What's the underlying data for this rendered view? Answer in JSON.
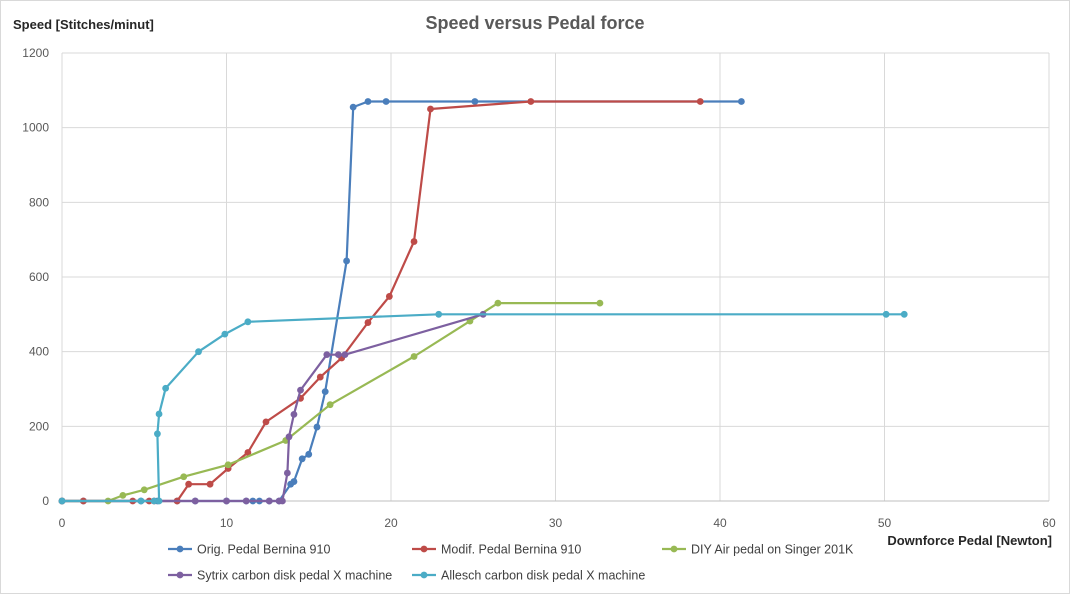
{
  "chart_data": {
    "type": "line",
    "title": "Speed versus  Pedal force",
    "xlabel": "Downforce Pedal [Newton]",
    "ylabel": "Speed [Stitches/minut]",
    "xlim": [
      0,
      60
    ],
    "ylim": [
      0,
      1200
    ],
    "xticks": [
      0,
      10,
      20,
      30,
      40,
      50,
      60
    ],
    "yticks": [
      0,
      200,
      400,
      600,
      800,
      1000,
      1200
    ],
    "grid": true,
    "legend_position": "bottom",
    "series": [
      {
        "name": "Orig. Pedal Bernina 910",
        "color": "#4a7ebb",
        "points": [
          [
            0,
            0
          ],
          [
            1.3,
            0
          ],
          [
            4.8,
            0
          ],
          [
            5.8,
            0
          ],
          [
            7,
            0
          ],
          [
            8.1,
            0
          ],
          [
            10,
            0
          ],
          [
            11.2,
            0
          ],
          [
            11.6,
            0
          ],
          [
            12,
            0
          ],
          [
            12.6,
            0
          ],
          [
            13.2,
            0
          ],
          [
            13.9,
            45
          ],
          [
            14.1,
            52
          ],
          [
            14.6,
            113
          ],
          [
            15,
            125
          ],
          [
            15.5,
            198
          ],
          [
            16,
            293
          ],
          [
            17.3,
            643
          ],
          [
            17.7,
            1055
          ],
          [
            18.6,
            1070
          ],
          [
            19.7,
            1070
          ],
          [
            25.1,
            1070
          ],
          [
            41.3,
            1070
          ]
        ]
      },
      {
        "name": "Modif. Pedal Bernina 910",
        "color": "#be4b48",
        "points": [
          [
            0,
            0
          ],
          [
            1.3,
            0
          ],
          [
            4.3,
            0
          ],
          [
            5.3,
            0
          ],
          [
            5.6,
            0
          ],
          [
            7,
            0
          ],
          [
            7.7,
            45
          ],
          [
            9,
            45
          ],
          [
            10.1,
            87
          ],
          [
            11.3,
            130
          ],
          [
            12.4,
            212
          ],
          [
            14.5,
            275
          ],
          [
            15.7,
            332
          ],
          [
            17,
            383
          ],
          [
            18.6,
            478
          ],
          [
            19.9,
            548
          ],
          [
            21.4,
            695
          ],
          [
            22.4,
            1050
          ],
          [
            28.5,
            1070
          ],
          [
            38.8,
            1070
          ]
        ]
      },
      {
        "name": "DIY Air pedal on Singer 201K",
        "color": "#98b954",
        "points": [
          [
            0,
            0
          ],
          [
            2.8,
            0
          ],
          [
            3.7,
            15
          ],
          [
            5,
            30
          ],
          [
            7.4,
            65
          ],
          [
            10.1,
            97
          ],
          [
            13.6,
            162
          ],
          [
            16.3,
            258
          ],
          [
            21.4,
            387
          ],
          [
            24.8,
            482
          ],
          [
            26.5,
            530
          ],
          [
            32.7,
            530
          ]
        ]
      },
      {
        "name": "Sytrix carbon disk pedal X machine",
        "color": "#7d60a0",
        "points": [
          [
            0,
            0
          ],
          [
            8.1,
            0
          ],
          [
            10,
            0
          ],
          [
            11.2,
            0
          ],
          [
            12.6,
            0
          ],
          [
            13.2,
            0
          ],
          [
            13.4,
            0
          ],
          [
            13.7,
            75
          ],
          [
            13.8,
            172
          ],
          [
            14.1,
            232
          ],
          [
            14.5,
            297
          ],
          [
            16.1,
            392
          ],
          [
            16.8,
            392
          ],
          [
            17.2,
            392
          ],
          [
            25.6,
            500
          ]
        ]
      },
      {
        "name": "Allesch carbon disk pedal X machine",
        "color": "#4bacc6",
        "points": [
          [
            0,
            0
          ],
          [
            4.8,
            0
          ],
          [
            5.6,
            0
          ],
          [
            5.9,
            0
          ],
          [
            5.8,
            180
          ],
          [
            5.9,
            233
          ],
          [
            6.3,
            302
          ],
          [
            8.3,
            400
          ],
          [
            9.9,
            447
          ],
          [
            11.3,
            480
          ],
          [
            22.9,
            500
          ],
          [
            50.1,
            500
          ],
          [
            51.2,
            500
          ]
        ]
      }
    ]
  }
}
